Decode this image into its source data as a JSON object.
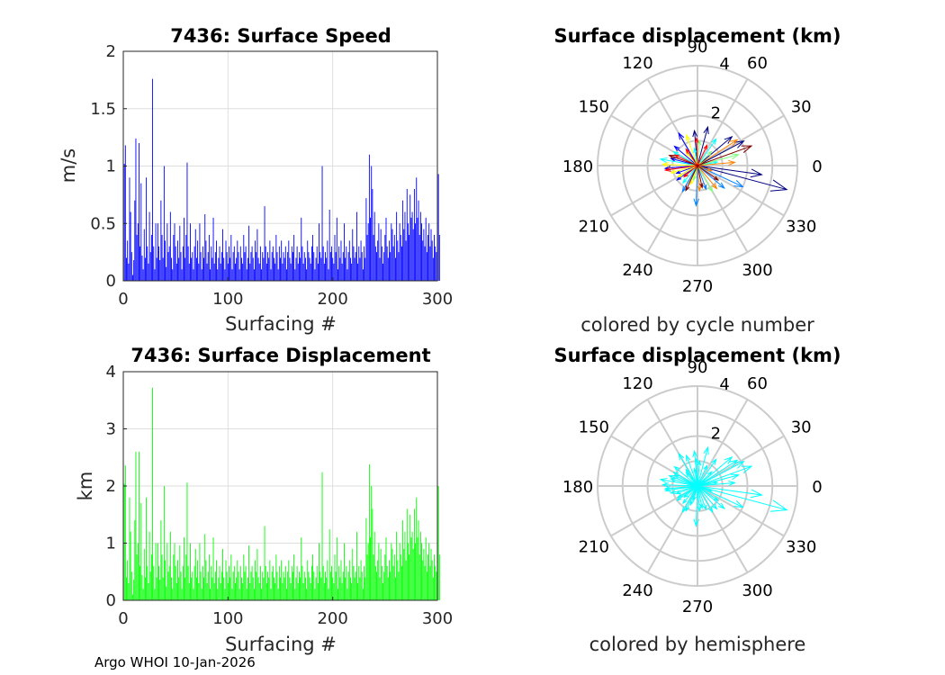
{
  "footer": "Argo WHOI 10-Jan-2026",
  "chart_data": [
    {
      "id": "speed",
      "type": "bar",
      "title": "7436: Surface Speed",
      "xlabel": "Surfacing #",
      "ylabel": "m/s",
      "xlim": [
        0,
        300
      ],
      "ylim": [
        0,
        2
      ],
      "xticks": [
        "0",
        "100",
        "200",
        "300"
      ],
      "yticks": [
        "0",
        "0.5",
        "1",
        "1.5",
        "2"
      ],
      "grid": true,
      "color": "#0000ff",
      "values": [
        1.02,
        1.18,
        0.2,
        0.35,
        0.15,
        0.9,
        0.6,
        0.25,
        0.05,
        0.18,
        0.7,
        1.24,
        0.4,
        0.5,
        1.2,
        0.3,
        0.85,
        0.22,
        0.1,
        0.45,
        0.2,
        0.9,
        0.3,
        0.15,
        0.6,
        0.25,
        0.4,
        1.76,
        0.3,
        0.1,
        0.5,
        0.2,
        0.5,
        0.3,
        0.18,
        0.7,
        0.4,
        0.2,
        1.0,
        0.35,
        0.12,
        0.5,
        0.25,
        0.3,
        0.6,
        0.2,
        0.1,
        0.4,
        0.5,
        0.3,
        0.15,
        0.35,
        0.2,
        0.48,
        0.25,
        0.1,
        0.3,
        0.55,
        0.2,
        0.4,
        1.03,
        0.3,
        0.15,
        0.5,
        0.2,
        0.25,
        0.1,
        0.3,
        0.45,
        0.2,
        0.35,
        0.15,
        0.5,
        0.25,
        0.1,
        0.3,
        0.2,
        0.58,
        0.35,
        0.15,
        0.25,
        0.4,
        0.1,
        0.3,
        0.2,
        0.55,
        0.15,
        0.25,
        0.35,
        0.1,
        0.2,
        0.3,
        0.15,
        0.25,
        0.45,
        0.2,
        0.1,
        0.35,
        0.25,
        0.15,
        0.3,
        0.2,
        0.4,
        0.1,
        0.25,
        0.3,
        0.15,
        0.2,
        0.35,
        0.25,
        0.1,
        0.3,
        0.2,
        0.15,
        0.4,
        0.25,
        0.3,
        0.1,
        0.2,
        0.48,
        0.15,
        0.25,
        0.3,
        0.2,
        0.1,
        0.35,
        0.25,
        0.45,
        0.2,
        0.15,
        0.3,
        0.1,
        0.25,
        0.2,
        0.65,
        0.3,
        0.15,
        0.25,
        0.2,
        0.35,
        0.1,
        0.25,
        0.3,
        0.2,
        0.15,
        0.4,
        0.25,
        0.1,
        0.3,
        0.2,
        0.35,
        0.15,
        0.25,
        0.2,
        0.3,
        0.1,
        0.25,
        0.35,
        0.2,
        0.15,
        0.3,
        0.25,
        0.4,
        0.1,
        0.2,
        0.3,
        0.15,
        0.25,
        0.2,
        0.55,
        0.3,
        0.15,
        0.25,
        0.2,
        0.1,
        0.35,
        0.25,
        0.2,
        0.15,
        0.3,
        0.4,
        0.25,
        0.1,
        0.2,
        0.3,
        0.15,
        0.5,
        0.25,
        0.2,
        1.0,
        0.3,
        0.15,
        0.25,
        0.2,
        0.35,
        0.1,
        0.62,
        0.25,
        0.3,
        0.2,
        0.15,
        0.4,
        0.25,
        0.55,
        0.1,
        0.3,
        0.2,
        0.35,
        0.15,
        0.25,
        0.5,
        0.2,
        0.3,
        0.1,
        0.25,
        0.35,
        0.2,
        0.15,
        0.45,
        0.3,
        0.2,
        0.25,
        0.6,
        0.15,
        0.3,
        0.2,
        0.35,
        0.25,
        0.1,
        0.3,
        0.2,
        0.72,
        0.4,
        0.5,
        1.1,
        0.55,
        1.0,
        0.8,
        0.4,
        0.6,
        0.3,
        0.25,
        0.35,
        0.5,
        0.2,
        0.45,
        0.3,
        0.15,
        0.25,
        0.4,
        0.55,
        0.3,
        0.2,
        0.35,
        0.25,
        0.5,
        0.45,
        0.3,
        0.4,
        0.2,
        0.6,
        0.35,
        0.25,
        0.5,
        0.4,
        0.3,
        0.7,
        0.45,
        0.6,
        0.35,
        0.8,
        0.5,
        0.4,
        0.75,
        0.55,
        0.6,
        0.45,
        0.8,
        0.5,
        0.9,
        0.55,
        0.7,
        0.4,
        0.6,
        0.5,
        0.35,
        0.45,
        0.3,
        0.55,
        0.25,
        0.4,
        0.5,
        0.3,
        0.45,
        0.35,
        0.2,
        0.4,
        0.3,
        0.25,
        0.5,
        0.93,
        0.4
      ]
    },
    {
      "id": "disp",
      "type": "bar",
      "title": "7436: Surface Displacement",
      "xlabel": "Surfacing #",
      "ylabel": "km",
      "xlim": [
        0,
        300
      ],
      "ylim": [
        0,
        4
      ],
      "xticks": [
        "0",
        "100",
        "200",
        "300"
      ],
      "yticks": [
        "0",
        "1",
        "2",
        "3",
        "4"
      ],
      "grid": true,
      "color": "#00ff00",
      "values": [
        2.04,
        2.36,
        0.4,
        0.7,
        0.3,
        1.8,
        1.2,
        0.5,
        0.1,
        0.36,
        1.4,
        2.6,
        0.8,
        1.0,
        2.6,
        0.6,
        1.7,
        0.44,
        0.2,
        0.9,
        0.4,
        1.8,
        0.6,
        0.3,
        1.2,
        0.5,
        0.8,
        3.72,
        0.6,
        0.2,
        1.0,
        0.4,
        1.0,
        0.6,
        0.36,
        1.4,
        0.8,
        0.4,
        2.0,
        0.7,
        0.24,
        1.0,
        0.5,
        0.6,
        1.2,
        0.4,
        0.2,
        0.8,
        1.0,
        0.6,
        0.3,
        0.7,
        0.4,
        0.96,
        0.5,
        0.2,
        0.6,
        1.1,
        0.4,
        0.8,
        2.06,
        0.6,
        0.3,
        1.0,
        0.4,
        0.5,
        0.2,
        0.6,
        0.9,
        0.4,
        0.7,
        0.3,
        1.0,
        0.5,
        0.2,
        0.6,
        0.4,
        1.16,
        0.7,
        0.3,
        0.5,
        0.8,
        0.2,
        0.6,
        0.4,
        1.1,
        0.3,
        0.5,
        0.7,
        0.2,
        0.4,
        0.6,
        0.3,
        0.5,
        0.9,
        0.4,
        0.2,
        0.7,
        0.5,
        0.3,
        0.6,
        0.4,
        0.8,
        0.2,
        0.5,
        0.6,
        0.3,
        0.4,
        0.7,
        0.5,
        0.2,
        0.6,
        0.4,
        0.3,
        0.8,
        0.5,
        0.6,
        0.2,
        0.4,
        0.96,
        0.3,
        0.5,
        0.6,
        0.4,
        0.2,
        0.7,
        0.5,
        0.9,
        0.4,
        0.3,
        0.6,
        0.2,
        0.5,
        0.4,
        1.3,
        0.6,
        0.3,
        0.5,
        0.4,
        0.7,
        0.2,
        0.5,
        0.6,
        0.4,
        0.3,
        0.8,
        0.5,
        0.2,
        0.6,
        0.4,
        0.7,
        0.3,
        0.5,
        0.4,
        0.6,
        0.2,
        0.5,
        0.7,
        0.4,
        0.3,
        0.6,
        0.5,
        0.8,
        0.2,
        0.4,
        0.6,
        0.3,
        0.5,
        0.4,
        1.1,
        0.6,
        0.3,
        0.5,
        0.4,
        0.2,
        0.7,
        0.5,
        0.4,
        0.3,
        0.6,
        0.8,
        0.5,
        0.2,
        0.4,
        0.6,
        0.3,
        1.0,
        0.5,
        0.4,
        2.24,
        0.6,
        0.3,
        0.5,
        0.4,
        0.7,
        0.2,
        1.24,
        0.5,
        0.6,
        0.4,
        0.3,
        0.8,
        0.5,
        1.1,
        0.2,
        0.6,
        0.4,
        0.7,
        0.3,
        0.5,
        1.0,
        0.4,
        0.6,
        0.2,
        0.5,
        0.7,
        0.4,
        0.3,
        0.9,
        0.6,
        0.4,
        0.5,
        1.2,
        0.3,
        0.6,
        0.4,
        0.7,
        0.5,
        0.2,
        0.6,
        0.4,
        1.44,
        0.8,
        1.0,
        2.38,
        1.1,
        2.0,
        1.6,
        0.8,
        1.2,
        0.6,
        0.5,
        0.7,
        1.0,
        0.4,
        0.9,
        0.6,
        0.3,
        0.5,
        0.8,
        1.1,
        0.6,
        0.4,
        0.7,
        0.5,
        1.0,
        0.9,
        0.6,
        0.8,
        0.4,
        1.2,
        0.7,
        0.5,
        1.0,
        0.8,
        0.6,
        1.4,
        0.9,
        1.2,
        0.7,
        1.6,
        1.0,
        0.8,
        1.5,
        1.1,
        1.2,
        0.9,
        1.6,
        1.0,
        1.8,
        1.1,
        1.4,
        0.8,
        1.2,
        1.0,
        0.7,
        0.9,
        0.6,
        1.1,
        0.5,
        0.8,
        1.0,
        0.6,
        0.9,
        0.7,
        0.4,
        0.8,
        0.6,
        0.5,
        1.0,
        2.0,
        0.8
      ]
    },
    {
      "id": "polar1",
      "type": "polar-compass",
      "title": "Surface displacement (km)",
      "xlabel": "colored by cycle number",
      "rmax": 4,
      "rticks": [
        "2",
        "4"
      ],
      "angle_ticks": [
        "0",
        "30",
        "60",
        "90",
        "120",
        "150",
        "180",
        "210",
        "240",
        "270",
        "300",
        "330"
      ],
      "colormap": [
        "#000080",
        "#0000ff",
        "#0080ff",
        "#00ffff",
        "#80ff80",
        "#ffff00",
        "#ff8000",
        "#ff0000",
        "#800000"
      ],
      "vectors": [
        {
          "r": 3.7,
          "theta": 345
        },
        {
          "r": 2.6,
          "theta": 352
        },
        {
          "r": 2.1,
          "theta": 28
        },
        {
          "r": 1.8,
          "theta": 40
        },
        {
          "r": 1.6,
          "theta": 75
        },
        {
          "r": 1.4,
          "theta": 95
        },
        {
          "r": 1.5,
          "theta": 120
        },
        {
          "r": 1.2,
          "theta": 140
        },
        {
          "r": 1.1,
          "theta": 165
        },
        {
          "r": 1.3,
          "theta": 185
        },
        {
          "r": 0.9,
          "theta": 200
        },
        {
          "r": 1.0,
          "theta": 215
        },
        {
          "r": 1.2,
          "theta": 240
        },
        {
          "r": 1.6,
          "theta": 268
        },
        {
          "r": 1.0,
          "theta": 290
        },
        {
          "r": 1.4,
          "theta": 320
        },
        {
          "r": 2.0,
          "theta": 335
        },
        {
          "r": 0.8,
          "theta": 10
        },
        {
          "r": 1.3,
          "theta": 55
        },
        {
          "r": 0.7,
          "theta": 100
        },
        {
          "r": 1.1,
          "theta": 150
        },
        {
          "r": 1.5,
          "theta": 170
        },
        {
          "r": 0.9,
          "theta": 230
        },
        {
          "r": 0.6,
          "theta": 255
        },
        {
          "r": 1.2,
          "theta": 300
        },
        {
          "r": 1.7,
          "theta": 15
        },
        {
          "r": 0.8,
          "theta": 45
        },
        {
          "r": 1.0,
          "theta": 85
        },
        {
          "r": 1.3,
          "theta": 110
        },
        {
          "r": 0.7,
          "theta": 130
        },
        {
          "r": 1.4,
          "theta": 178
        },
        {
          "r": 1.1,
          "theta": 195
        },
        {
          "r": 0.9,
          "theta": 210
        },
        {
          "r": 0.8,
          "theta": 250
        },
        {
          "r": 1.0,
          "theta": 275
        },
        {
          "r": 1.2,
          "theta": 310
        },
        {
          "r": 0.6,
          "theta": 340
        },
        {
          "r": 1.5,
          "theta": 5
        },
        {
          "r": 1.9,
          "theta": 33
        },
        {
          "r": 0.9,
          "theta": 65
        },
        {
          "r": 1.1,
          "theta": 92
        },
        {
          "r": 0.8,
          "theta": 125
        },
        {
          "r": 1.0,
          "theta": 155
        },
        {
          "r": 1.3,
          "theta": 188
        },
        {
          "r": 0.7,
          "theta": 220
        },
        {
          "r": 1.1,
          "theta": 245
        },
        {
          "r": 0.9,
          "theta": 282
        },
        {
          "r": 1.0,
          "theta": 325
        },
        {
          "r": 2.3,
          "theta": 20
        },
        {
          "r": 1.2,
          "theta": 160
        }
      ]
    },
    {
      "id": "polar2",
      "type": "polar-compass",
      "title": "Surface displacement (km)",
      "xlabel": "colored by hemisphere",
      "rmax": 4,
      "rticks": [
        "2",
        "4"
      ],
      "angle_ticks": [
        "0",
        "30",
        "60",
        "90",
        "120",
        "150",
        "180",
        "210",
        "240",
        "270",
        "300",
        "330"
      ],
      "color": "#00ffff",
      "vectors": [
        {
          "r": 3.7,
          "theta": 345
        },
        {
          "r": 2.6,
          "theta": 352
        },
        {
          "r": 2.1,
          "theta": 28
        },
        {
          "r": 1.8,
          "theta": 40
        },
        {
          "r": 1.6,
          "theta": 75
        },
        {
          "r": 1.4,
          "theta": 95
        },
        {
          "r": 1.5,
          "theta": 120
        },
        {
          "r": 1.2,
          "theta": 140
        },
        {
          "r": 1.1,
          "theta": 165
        },
        {
          "r": 1.3,
          "theta": 185
        },
        {
          "r": 0.9,
          "theta": 200
        },
        {
          "r": 1.0,
          "theta": 215
        },
        {
          "r": 1.2,
          "theta": 240
        },
        {
          "r": 1.6,
          "theta": 268
        },
        {
          "r": 1.0,
          "theta": 290
        },
        {
          "r": 1.4,
          "theta": 320
        },
        {
          "r": 2.0,
          "theta": 335
        },
        {
          "r": 0.8,
          "theta": 10
        },
        {
          "r": 1.3,
          "theta": 55
        },
        {
          "r": 0.7,
          "theta": 100
        },
        {
          "r": 1.1,
          "theta": 150
        },
        {
          "r": 1.5,
          "theta": 170
        },
        {
          "r": 0.9,
          "theta": 230
        },
        {
          "r": 0.6,
          "theta": 255
        },
        {
          "r": 1.2,
          "theta": 300
        },
        {
          "r": 1.7,
          "theta": 15
        },
        {
          "r": 0.8,
          "theta": 45
        },
        {
          "r": 1.0,
          "theta": 85
        },
        {
          "r": 1.3,
          "theta": 110
        },
        {
          "r": 0.7,
          "theta": 130
        },
        {
          "r": 1.4,
          "theta": 178
        },
        {
          "r": 1.1,
          "theta": 195
        },
        {
          "r": 0.9,
          "theta": 210
        },
        {
          "r": 0.8,
          "theta": 250
        },
        {
          "r": 1.0,
          "theta": 275
        },
        {
          "r": 1.2,
          "theta": 310
        },
        {
          "r": 0.6,
          "theta": 340
        },
        {
          "r": 1.5,
          "theta": 5
        },
        {
          "r": 1.9,
          "theta": 33
        },
        {
          "r": 0.9,
          "theta": 65
        },
        {
          "r": 1.1,
          "theta": 92
        },
        {
          "r": 0.8,
          "theta": 125
        },
        {
          "r": 1.0,
          "theta": 155
        },
        {
          "r": 1.3,
          "theta": 188
        },
        {
          "r": 0.7,
          "theta": 220
        },
        {
          "r": 1.1,
          "theta": 245
        },
        {
          "r": 0.9,
          "theta": 282
        },
        {
          "r": 1.0,
          "theta": 325
        },
        {
          "r": 2.3,
          "theta": 20
        },
        {
          "r": 1.2,
          "theta": 160
        }
      ]
    }
  ]
}
